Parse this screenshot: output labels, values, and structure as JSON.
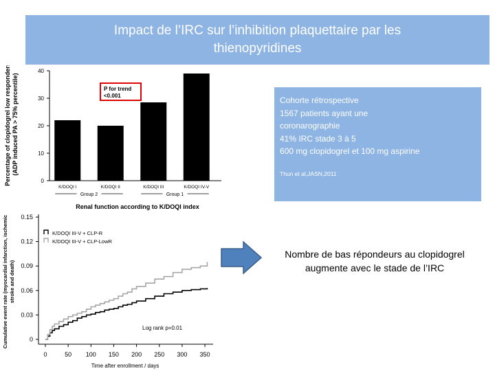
{
  "slide": {
    "title_line1": "Impact de l’IRC sur l’inhibition plaquettaire par les",
    "title_line2": "thienopyridines",
    "info_lines": [
      "Cohorte rétrospective",
      "1567 patients ayant une",
      "coronarographie",
      "41% IRC stade  3 à 5",
      "600 mg clopidogrel  et 100 mg aspirine"
    ],
    "citation": "Thun et al,JASN,2011",
    "conclusion_line1": "Nombre de bas  répondeurs au  clopidogrel",
    "conclusion_line2": "augmente avec le stade de l’IRC",
    "colors": {
      "box_blue": "#8eb4e3",
      "arrow_blue": "#4f81bd",
      "trend_box_red": "#e00000"
    }
  },
  "chart_data": [
    {
      "type": "bar",
      "ylabel_line1": "Percentage of clopidogrel low responders",
      "ylabel_line2": "(ADP induced PA > 75% percentile)",
      "categories": [
        "K/DOQI I",
        "K/DOQI II",
        "K/DOQI III",
        "K/DOQI IV-V"
      ],
      "values": [
        22,
        20,
        28.5,
        39
      ],
      "ylim": [
        0,
        40
      ],
      "yticks": [
        "0",
        "10",
        "20",
        "30",
        "40"
      ],
      "groups": [
        {
          "label": "Group 2",
          "from": 0,
          "to": 1
        },
        {
          "label": "Group 1",
          "from": 2,
          "to": 3
        }
      ],
      "xlabel": "Renal function according to K/DOQI index",
      "annotation_line1": "P for trend",
      "annotation_line2": "<0.001",
      "bar_color": "#000000"
    },
    {
      "type": "line",
      "ylabel_line1": "Cumulative event rate (myocardial infarction, ischemic",
      "ylabel_line2": "stroke and death)",
      "xlabel": "Time after enrollment / days",
      "xlim": [
        0,
        365
      ],
      "ylim": [
        0,
        0.15
      ],
      "xticks": [
        "0",
        "50",
        "100",
        "150",
        "200",
        "250",
        "300",
        "350"
      ],
      "yticks": [
        "0",
        "0.03",
        "0.06",
        "0.09",
        "0.12",
        "0.15"
      ],
      "annotation": "Log rank p=0.01",
      "series": [
        {
          "name": "K/DOQI III-V + CLP-R",
          "color": "#000000",
          "x": [
            0,
            5,
            10,
            15,
            20,
            30,
            40,
            50,
            60,
            70,
            80,
            90,
            100,
            110,
            120,
            130,
            140,
            150,
            160,
            170,
            180,
            190,
            200,
            220,
            240,
            260,
            280,
            300,
            320,
            340,
            355
          ],
          "y": [
            0,
            0.004,
            0.008,
            0.011,
            0.013,
            0.016,
            0.018,
            0.021,
            0.023,
            0.026,
            0.028,
            0.03,
            0.031,
            0.033,
            0.034,
            0.036,
            0.037,
            0.038,
            0.04,
            0.042,
            0.043,
            0.045,
            0.047,
            0.05,
            0.053,
            0.056,
            0.058,
            0.06,
            0.061,
            0.062,
            0.063
          ]
        },
        {
          "name": "K/DOQI III-V + CLP-LowR",
          "color": "#a6a6a6",
          "x": [
            0,
            5,
            10,
            15,
            20,
            30,
            40,
            50,
            60,
            70,
            80,
            90,
            100,
            110,
            120,
            130,
            140,
            150,
            160,
            170,
            180,
            190,
            200,
            220,
            240,
            260,
            280,
            300,
            320,
            340,
            355
          ],
          "y": [
            0,
            0.006,
            0.012,
            0.016,
            0.019,
            0.022,
            0.025,
            0.028,
            0.03,
            0.032,
            0.034,
            0.037,
            0.04,
            0.042,
            0.044,
            0.046,
            0.048,
            0.05,
            0.053,
            0.056,
            0.058,
            0.062,
            0.065,
            0.069,
            0.074,
            0.077,
            0.082,
            0.086,
            0.088,
            0.09,
            0.095
          ]
        }
      ]
    }
  ]
}
